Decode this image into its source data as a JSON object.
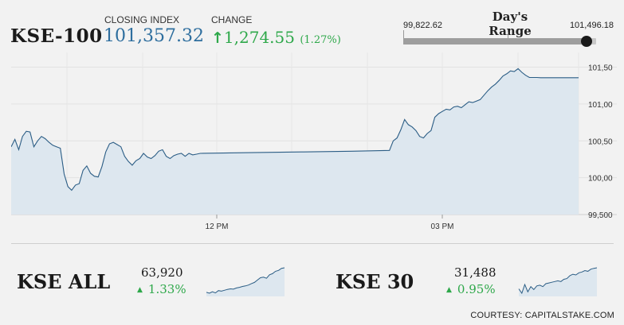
{
  "header": {
    "index_name": "KSE-100",
    "closing_label": "CLOSING INDEX",
    "closing_value": "101,357.32",
    "change_label": "CHANGE",
    "change_arrow": "↑",
    "change_value": "1,274.55",
    "change_pct": "(1.27%)"
  },
  "days_range": {
    "title": "Day's Range",
    "low": "99,822.62",
    "high": "101,496.18",
    "current_fraction": 0.95
  },
  "colors": {
    "accent_blue": "#2e6e9e",
    "positive_green": "#2ea84a",
    "line": "#2b5d85",
    "area_fill": "#dde7ef"
  },
  "chart_data": [
    {
      "type": "area",
      "x_tick_labels": [
        "12 PM",
        "03 PM"
      ],
      "y_tick_labels": [
        "101,50",
        "101,00",
        "100,50",
        "100,00",
        "99,500"
      ],
      "ylim": [
        99500,
        101700
      ],
      "grid": true,
      "x_unit": "minutes since 09:30",
      "series": [
        {
          "x": [
            0,
            3,
            6,
            9,
            12,
            15,
            18,
            21,
            24,
            27,
            30,
            33,
            36,
            39,
            42,
            45,
            48,
            51,
            54,
            57,
            60,
            63,
            66,
            69,
            72,
            75,
            78,
            81,
            84,
            87,
            90,
            93,
            96,
            99,
            102,
            105,
            108,
            111,
            114,
            117,
            120,
            123,
            126,
            129,
            132,
            135,
            138,
            141,
            144,
            147,
            150,
            190,
            230,
            270,
            300,
            303,
            306,
            309,
            312,
            315,
            318,
            321,
            324,
            327,
            330,
            333,
            336,
            339,
            342,
            345,
            348,
            351,
            354,
            357,
            360,
            363,
            366,
            369,
            372,
            375,
            378,
            381,
            384,
            387,
            390,
            393,
            396,
            399,
            402,
            405,
            408,
            411,
            414,
            417,
            420,
            440,
            450
          ],
          "values": [
            100420,
            100520,
            100380,
            100560,
            100630,
            100620,
            100420,
            100500,
            100560,
            100530,
            100480,
            100440,
            100420,
            100400,
            100050,
            99880,
            99830,
            99900,
            99920,
            100100,
            100160,
            100060,
            100020,
            100010,
            100150,
            100350,
            100460,
            100480,
            100450,
            100420,
            100290,
            100220,
            100170,
            100230,
            100260,
            100330,
            100280,
            100260,
            100300,
            100360,
            100380,
            100290,
            100260,
            100300,
            100320,
            100330,
            100290,
            100330,
            100310,
            100320,
            100330,
            100340,
            100350,
            100360,
            100370,
            100500,
            100540,
            100650,
            100790,
            100720,
            100690,
            100640,
            100560,
            100540,
            100600,
            100640,
            100820,
            100870,
            100900,
            100930,
            100920,
            100960,
            100970,
            100950,
            100990,
            101030,
            101020,
            101040,
            101060,
            101120,
            101180,
            101230,
            101270,
            101320,
            101380,
            101410,
            101450,
            101440,
            101480,
            101430,
            101390,
            101360,
            101360,
            101360,
            101357,
            101357,
            101357
          ]
        }
      ]
    },
    {
      "type": "area",
      "name": "KSE ALL",
      "values": [
        63080,
        63050,
        63100,
        63060,
        63140,
        63120,
        63150,
        63180,
        63200,
        63190,
        63230,
        63250,
        63280,
        63300,
        63330,
        63380,
        63420,
        63500,
        63580,
        63600,
        63560,
        63680,
        63720,
        63800,
        63830,
        63900,
        63920
      ]
    },
    {
      "type": "area",
      "name": "KSE 30",
      "values": [
        31200,
        31140,
        31260,
        31160,
        31230,
        31190,
        31240,
        31250,
        31230,
        31270,
        31280,
        31290,
        31300,
        31310,
        31300,
        31330,
        31340,
        31380,
        31400,
        31390,
        31420,
        31430,
        31450,
        31440,
        31470,
        31480,
        31488
      ]
    }
  ],
  "mini_indices": [
    {
      "name": "KSE ALL",
      "value": "63,920",
      "arrow": "▲",
      "change": "1.33%"
    },
    {
      "name": "KSE 30",
      "value": "31,488",
      "arrow": "▲",
      "change": "0.95%"
    }
  ],
  "footer": {
    "courtesy": "COURTESY: CAPITALSTAKE.COM"
  }
}
